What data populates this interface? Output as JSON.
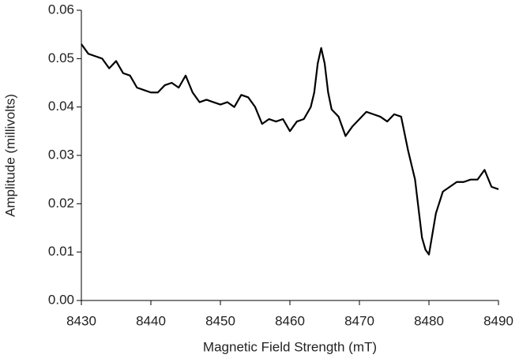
{
  "chart_data": {
    "type": "line",
    "x_label": "Magnetic Field Strength (mT)",
    "y_label": "Amplitude (millivolts)",
    "xlim": [
      8430,
      8490
    ],
    "xticks": [
      8430,
      8440,
      8450,
      8460,
      8470,
      8480,
      8490
    ],
    "ylim": [
      0,
      0.06
    ],
    "yticks": [
      {
        "value": 0,
        "label": "0.00"
      },
      0.01,
      0.02,
      0.03,
      0.04,
      0.05,
      0.06
    ],
    "grid": false,
    "x": [
      8430,
      8431,
      8432,
      8433,
      8434,
      8435,
      8436,
      8437,
      8438,
      8439,
      8440,
      8441,
      8442,
      8443,
      8444,
      8445,
      8446,
      8447,
      8448,
      8449,
      8450,
      8451,
      8452,
      8453,
      8454,
      8455,
      8456,
      8457,
      8458,
      8459,
      8460,
      8461,
      8462,
      8463,
      8463.5,
      8464,
      8464.5,
      8465,
      8465.5,
      8466,
      8467,
      8468,
      8469,
      8470,
      8471,
      8472,
      8473,
      8474,
      8475,
      8476,
      8477,
      8478,
      8479,
      8479.5,
      8480,
      8481,
      8482,
      8483,
      8484,
      8485,
      8486,
      8487,
      8488,
      8489,
      8490
    ],
    "series": [
      {
        "color": "#000000",
        "values": [
          0.053,
          0.051,
          0.0505,
          0.05,
          0.048,
          0.0495,
          0.047,
          0.0465,
          0.044,
          0.0435,
          0.043,
          0.043,
          0.0445,
          0.045,
          0.044,
          0.0465,
          0.043,
          0.041,
          0.0415,
          0.041,
          0.0405,
          0.041,
          0.04,
          0.0425,
          0.042,
          0.04,
          0.0365,
          0.0375,
          0.037,
          0.0375,
          0.035,
          0.037,
          0.0375,
          0.04,
          0.043,
          0.049,
          0.0522,
          0.049,
          0.043,
          0.0395,
          0.038,
          0.034,
          0.036,
          0.0375,
          0.039,
          0.0385,
          0.038,
          0.037,
          0.0385,
          0.038,
          0.031,
          0.025,
          0.013,
          0.0105,
          0.0095,
          0.018,
          0.0225,
          0.0235,
          0.0245,
          0.0245,
          0.025,
          0.025,
          0.027,
          0.0235,
          0.023
        ]
      }
    ]
  }
}
